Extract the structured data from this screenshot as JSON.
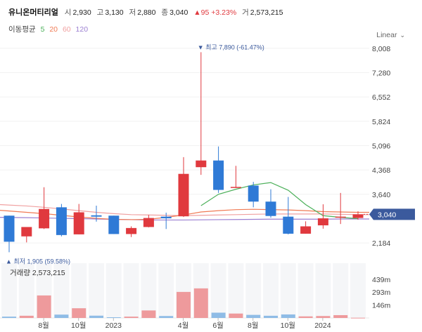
{
  "header": {
    "name": "유니온머티리얼",
    "open_label": "시",
    "open": "2,930",
    "high_label": "고",
    "high": "3,130",
    "low_label": "저",
    "low": "2,880",
    "close_label": "종",
    "close": "3,040",
    "change": "▲95 +3.23%",
    "volume_label": "거",
    "volume": "2,573,215"
  },
  "ma": {
    "label": "이동평균",
    "periods": [
      {
        "value": "5",
        "color": "#4cb05a"
      },
      {
        "value": "20",
        "color": "#f07a54"
      },
      {
        "value": "60",
        "color": "#f0a0a0"
      },
      {
        "value": "120",
        "color": "#9b7fd1"
      }
    ]
  },
  "scale_label": "Linear",
  "colors": {
    "up": "#e0393e",
    "down": "#2f7ad6",
    "current": "#3b5a9d",
    "annot": "#3b5a9d"
  },
  "chart_data": {
    "type": "candlestick",
    "period": "monthly",
    "y_ticks": [
      "8,008",
      "7,280",
      "6,552",
      "5,824",
      "5,096",
      "4,368",
      "3,640",
      "2,184"
    ],
    "ylim": [
      1850,
      8150
    ],
    "x_ticks": [
      "8월",
      "10월",
      "2023",
      "4월",
      "6월",
      "8월",
      "10월",
      "2024"
    ],
    "candles": [
      {
        "o": 3000,
        "h": 3000,
        "l": 1905,
        "c": 2220
      },
      {
        "o": 2380,
        "h": 2650,
        "l": 2200,
        "c": 2660
      },
      {
        "o": 2620,
        "h": 3850,
        "l": 2600,
        "c": 3200
      },
      {
        "o": 3250,
        "h": 3350,
        "l": 2380,
        "c": 2420
      },
      {
        "o": 2440,
        "h": 3350,
        "l": 2440,
        "c": 3100
      },
      {
        "o": 3010,
        "h": 3300,
        "l": 2820,
        "c": 2970
      },
      {
        "o": 3000,
        "h": 3000,
        "l": 2450,
        "c": 2450
      },
      {
        "o": 2450,
        "h": 2680,
        "l": 2360,
        "c": 2630
      },
      {
        "o": 2660,
        "h": 3020,
        "l": 2650,
        "c": 2930
      },
      {
        "o": 2970,
        "h": 3090,
        "l": 2600,
        "c": 2920
      },
      {
        "o": 2980,
        "h": 4750,
        "l": 2960,
        "c": 4250
      },
      {
        "o": 4450,
        "h": 7890,
        "l": 4220,
        "c": 4650
      },
      {
        "o": 4650,
        "h": 5070,
        "l": 3680,
        "c": 3770
      },
      {
        "o": 3830,
        "h": 4490,
        "l": 3830,
        "c": 3860
      },
      {
        "o": 3900,
        "h": 4010,
        "l": 3250,
        "c": 3420
      },
      {
        "o": 3420,
        "h": 3790,
        "l": 2940,
        "c": 2990
      },
      {
        "o": 2970,
        "h": 3560,
        "l": 2440,
        "c": 2460
      },
      {
        "o": 2460,
        "h": 2830,
        "l": 2460,
        "c": 2680
      },
      {
        "o": 2710,
        "h": 3340,
        "l": 2610,
        "c": 2920
      },
      {
        "o": 2950,
        "h": 3680,
        "l": 2750,
        "c": 2970
      },
      {
        "o": 2930,
        "h": 3130,
        "l": 2880,
        "c": 3040
      }
    ],
    "ma5": [
      [
        11,
        3300
      ],
      [
        12,
        3640
      ],
      [
        13,
        3790
      ],
      [
        14,
        3920
      ],
      [
        15,
        3990
      ],
      [
        16,
        3760
      ],
      [
        17,
        3330
      ],
      [
        18,
        3000
      ],
      [
        19,
        2950
      ],
      [
        20,
        2910
      ]
    ],
    "ma20": [
      3160,
      3100,
      3060,
      3010,
      2960,
      2920,
      2890,
      2880,
      2890,
      2950,
      3020,
      3110,
      3150,
      3180,
      3190,
      3180,
      3170,
      3150,
      3120,
      3110,
      3100
    ],
    "ma60": [
      3330,
      3290,
      3250,
      3200,
      3150,
      3100,
      3060,
      3030,
      3020,
      3010,
      3000,
      3010,
      3020,
      3030,
      3040,
      3050,
      3050,
      3050,
      3050,
      3040,
      3030
    ],
    "ma120": [
      2950,
      2940,
      2930,
      2920,
      2910,
      2900,
      2890,
      2880,
      2870,
      2870,
      2870,
      2875,
      2880,
      2885,
      2890,
      2895,
      2895,
      2895,
      2895,
      2900,
      2900
    ],
    "high_annot": {
      "index": 11,
      "text": "최고 7,890 (-61.47%)",
      "marker": "▼"
    },
    "low_annot": {
      "index": 0,
      "text": "최저 1,905 (59.58%)",
      "marker": "▲"
    },
    "current_label": "3,040",
    "current_value": 3040,
    "volume_label": "거래량 2,573,215",
    "volume_ticks": [
      "439m",
      "293m",
      "146m"
    ],
    "volume_tick_values": [
      439,
      293,
      146
    ],
    "volume_max": 620,
    "volume": [
      15,
      25,
      255,
      38,
      110,
      26,
      8,
      15,
      85,
      22,
      295,
      335,
      60,
      50,
      35,
      25,
      40,
      18,
      22,
      32,
      2.57
    ]
  }
}
